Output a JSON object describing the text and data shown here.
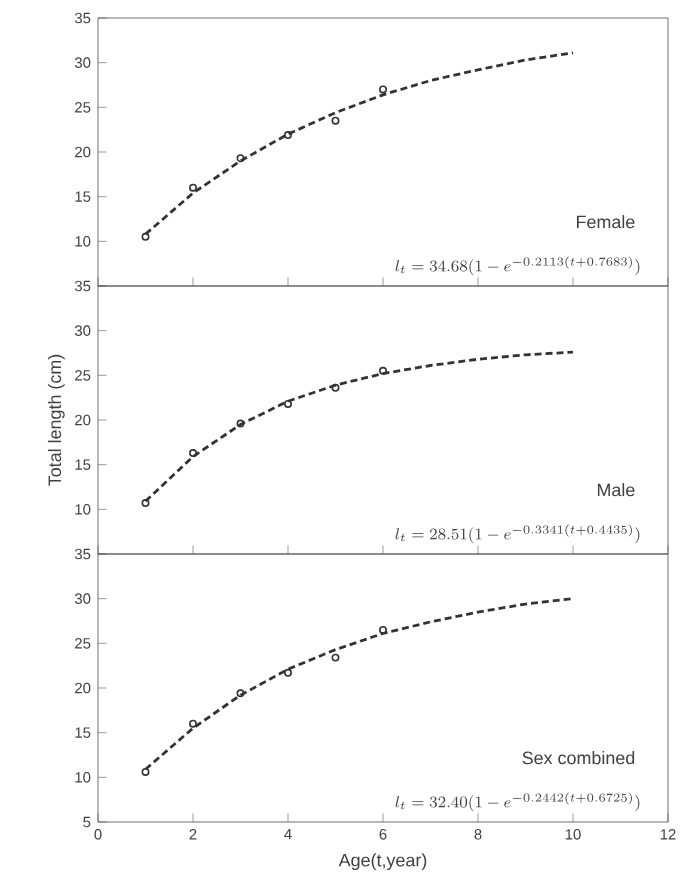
{
  "chart_data": [
    {
      "type": "scatter",
      "xlim": [
        0,
        12
      ],
      "xticks": [
        0,
        2,
        4,
        6,
        8,
        10,
        12
      ],
      "ylim": [
        5,
        35
      ],
      "yticks": [
        10,
        15,
        20,
        25,
        30,
        35
      ],
      "tick_labels": "y",
      "grid": false,
      "series": [
        {
          "type": "scatter",
          "marker": "circle",
          "color": "#333333",
          "x": [
            1,
            2,
            3,
            4,
            5,
            6
          ],
          "values": [
            10.5,
            16.0,
            19.3,
            21.9,
            23.5,
            27.0
          ]
        },
        {
          "type": "line",
          "marker": "none",
          "line_style": "dashed",
          "color": "#333333",
          "x": [
            1,
            2,
            3,
            4,
            5,
            6,
            7,
            8,
            9,
            10
          ],
          "values": [
            10.8,
            15.4,
            19.0,
            22.0,
            24.4,
            26.4,
            28.0,
            29.2,
            30.3,
            31.1
          ]
        }
      ],
      "annotations": [
        "Female",
        "l_{t} = 34.68(1 - e^{-0.2113(t+0.7683)})"
      ]
    },
    {
      "type": "scatter",
      "xlim": [
        0,
        12
      ],
      "xticks": [
        0,
        2,
        4,
        6,
        8,
        10,
        12
      ],
      "ylim": [
        5,
        35
      ],
      "yticks": [
        10,
        15,
        20,
        25,
        30,
        35
      ],
      "tick_labels": "y",
      "grid": false,
      "ylabel": "Total length (cm)",
      "series": [
        {
          "type": "scatter",
          "marker": "circle",
          "color": "#333333",
          "x": [
            1,
            2,
            3,
            4,
            5,
            6
          ],
          "values": [
            10.7,
            16.3,
            19.6,
            21.8,
            23.6,
            25.5
          ]
        },
        {
          "type": "line",
          "marker": "none",
          "line_style": "dashed",
          "color": "#333333",
          "x": [
            1,
            2,
            3,
            4,
            5,
            6,
            7,
            8,
            9,
            10
          ],
          "values": [
            10.9,
            15.9,
            19.5,
            22.1,
            23.9,
            25.2,
            26.1,
            26.8,
            27.3,
            27.6
          ]
        }
      ],
      "annotations": [
        "Male",
        "l_{t} = 28.51(1 - e^{-0.3341(t+0.4435)})"
      ]
    },
    {
      "type": "scatter",
      "xlim": [
        0,
        12
      ],
      "xticks": [
        0,
        2,
        4,
        6,
        8,
        10,
        12
      ],
      "ylim": [
        5,
        35
      ],
      "yticks": [
        5,
        10,
        15,
        20,
        25,
        30,
        35
      ],
      "grid": false,
      "xlabel": "Age(t,year)",
      "series": [
        {
          "type": "scatter",
          "marker": "circle",
          "color": "#333333",
          "x": [
            1,
            2,
            3,
            4,
            5,
            6
          ],
          "values": [
            10.6,
            16.0,
            19.4,
            21.7,
            23.4,
            26.5
          ]
        },
        {
          "type": "line",
          "marker": "none",
          "line_style": "dashed",
          "color": "#333333",
          "x": [
            1,
            2,
            3,
            4,
            5,
            6,
            7,
            8,
            9,
            10
          ],
          "values": [
            10.9,
            15.5,
            19.2,
            22.1,
            24.3,
            26.1,
            27.4,
            28.5,
            29.4,
            30.0
          ]
        }
      ],
      "annotations": [
        "Sex combined",
        "l_{t} = 32.40(1 - e^{-0.2442(t+0.6725)})"
      ]
    }
  ]
}
